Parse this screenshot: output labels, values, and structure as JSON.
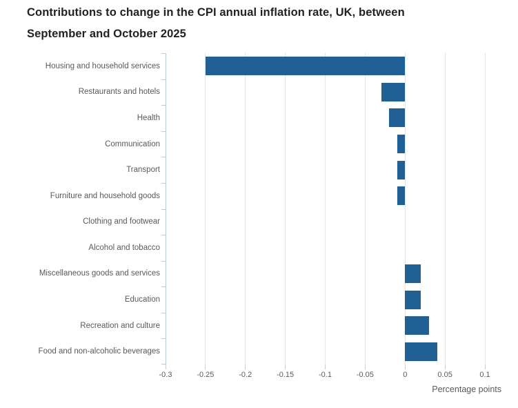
{
  "title_line1": "Contributions to change in the CPI annual inflation rate, UK, between",
  "title_line2": "September and October 2025",
  "colors": {
    "bar": "#206095",
    "axis_line": "#b9c8d6",
    "gridline": "#e4e4e4",
    "x_tick": "#c4cacf",
    "muted_text": "#595959",
    "title_text": "#222222"
  },
  "chart_data": {
    "type": "bar",
    "orientation": "horizontal",
    "title": "Contributions to change in the CPI annual inflation rate, UK, between September and October 2025",
    "xlabel": "Percentage points",
    "ylabel": "",
    "categories": [
      "Housing and household services",
      "Restaurants and hotels",
      "Health",
      "Communication",
      "Transport",
      "Furniture and household goods",
      "Clothing and footwear",
      "Alcohol and tobacco",
      "Miscellaneous goods and services",
      "Education",
      "Recreation and culture",
      "Food and non-alcoholic beverages"
    ],
    "values": [
      -0.25,
      -0.03,
      -0.02,
      -0.01,
      -0.01,
      -0.01,
      0,
      0,
      0.02,
      0.02,
      0.03,
      0.04
    ],
    "xlim": [
      -0.3,
      0.1
    ],
    "xticks": [
      -0.3,
      -0.25,
      -0.2,
      -0.15,
      -0.1,
      -0.05,
      0,
      0.05,
      0.1
    ],
    "xtick_labels": [
      "-0.3",
      "-0.25",
      "-0.2",
      "-0.15",
      "-0.1",
      "-0.05",
      "0",
      "0.05",
      "0.1"
    ],
    "grid": "vertical",
    "legend": false
  }
}
